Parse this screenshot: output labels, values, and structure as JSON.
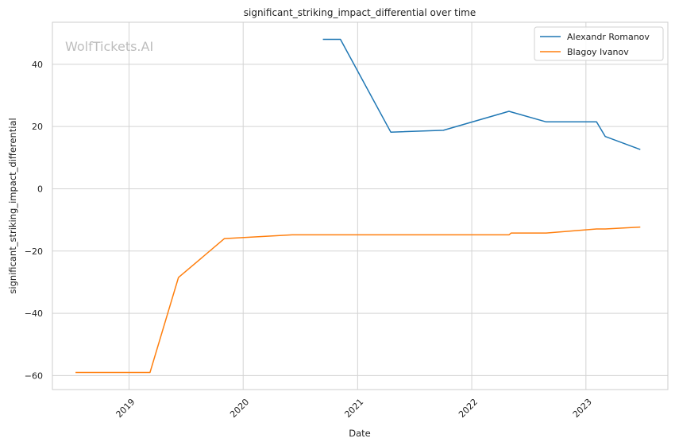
{
  "chart_data": {
    "type": "line",
    "title": "significant_striking_impact_differential over time",
    "xlabel": "Date",
    "ylabel": "significant_striking_impact_differential",
    "watermark": "WolfTickets.AI",
    "xlim": [
      "2018-05-01",
      "2023-09-20"
    ],
    "ylim": [
      -64.5,
      53.5
    ],
    "x_ticks": [
      {
        "date": "2019-01-01",
        "label": "2019"
      },
      {
        "date": "2020-01-01",
        "label": "2020"
      },
      {
        "date": "2021-01-01",
        "label": "2021"
      },
      {
        "date": "2022-01-01",
        "label": "2022"
      },
      {
        "date": "2023-01-01",
        "label": "2023"
      }
    ],
    "y_ticks": [
      {
        "value": -60,
        "label": "−60"
      },
      {
        "value": -40,
        "label": "−40"
      },
      {
        "value": -20,
        "label": "−20"
      },
      {
        "value": 0,
        "label": "0"
      },
      {
        "value": 20,
        "label": "20"
      },
      {
        "value": 40,
        "label": "40"
      }
    ],
    "grid": true,
    "legend_position": "top-right",
    "series": [
      {
        "name": "Alexandr Romanov",
        "color": "#1f77b4",
        "points": [
          {
            "x": "2020-09-12",
            "y": 48
          },
          {
            "x": "2020-11-07",
            "y": 48
          },
          {
            "x": "2021-04-17",
            "y": 18.2
          },
          {
            "x": "2021-10-02",
            "y": 18.8
          },
          {
            "x": "2022-04-30",
            "y": 24.9
          },
          {
            "x": "2022-08-27",
            "y": 21.5
          },
          {
            "x": "2023-02-04",
            "y": 21.5
          },
          {
            "x": "2023-03-04",
            "y": 16.8
          },
          {
            "x": "2023-06-24",
            "y": 12.6
          }
        ]
      },
      {
        "name": "Blagoy Ivanov",
        "color": "#ff7f0e",
        "points": [
          {
            "x": "2018-07-14",
            "y": -59
          },
          {
            "x": "2019-03-09",
            "y": -59
          },
          {
            "x": "2019-06-08",
            "y": -28.5
          },
          {
            "x": "2019-11-02",
            "y": -16
          },
          {
            "x": "2020-06-06",
            "y": -14.8
          },
          {
            "x": "2022-04-30",
            "y": -14.8
          },
          {
            "x": "2022-05-07",
            "y": -14.2
          },
          {
            "x": "2022-08-27",
            "y": -14.2
          },
          {
            "x": "2023-02-04",
            "y": -12.9
          },
          {
            "x": "2023-03-04",
            "y": -12.9
          },
          {
            "x": "2023-06-24",
            "y": -12.3
          }
        ]
      }
    ]
  }
}
